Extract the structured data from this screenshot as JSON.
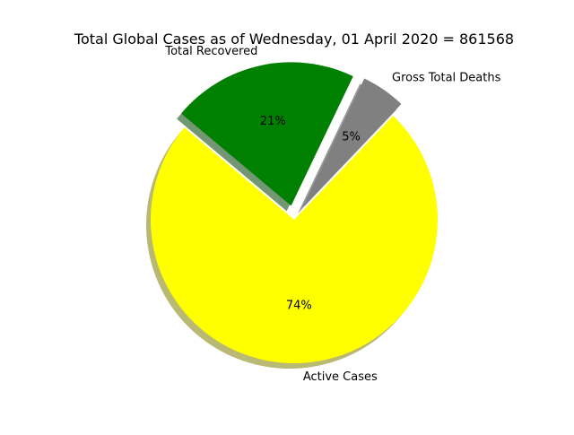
{
  "chart_data": {
    "type": "pie",
    "title": "Total Global Cases as of Wednesday, 01 April 2020 = 861568",
    "slices": [
      {
        "label": "Active Cases",
        "percent_label": "74%",
        "value": 74,
        "color": "#ffff00",
        "exploded": false
      },
      {
        "label": "Gross Total Deaths",
        "percent_label": "5%",
        "value": 5,
        "color": "#808080",
        "exploded": true
      },
      {
        "label": "Total Recovered",
        "percent_label": "21%",
        "value": 21,
        "color": "#008000",
        "exploded": true
      }
    ],
    "start_angle": 140,
    "shadow": true,
    "legend": false
  }
}
